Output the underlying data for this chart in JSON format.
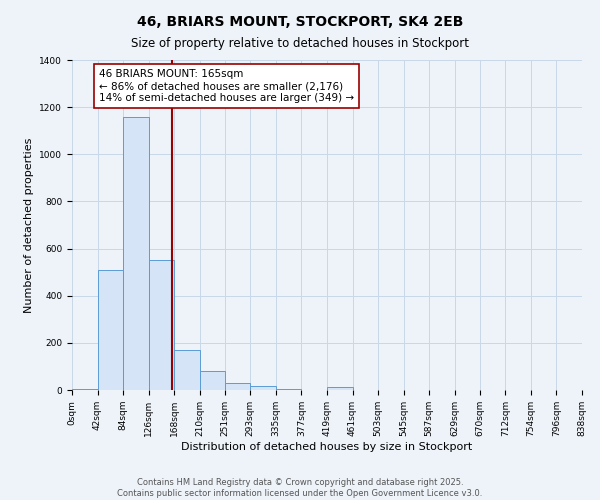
{
  "title": "46, BRIARS MOUNT, STOCKPORT, SK4 2EB",
  "subtitle": "Size of property relative to detached houses in Stockport",
  "xlabel": "Distribution of detached houses by size in Stockport",
  "ylabel": "Number of detached properties",
  "bin_edges": [
    0,
    42,
    84,
    126,
    168,
    210,
    251,
    293,
    335,
    377,
    419,
    461,
    503,
    545,
    587,
    629,
    670,
    712,
    754,
    796,
    838
  ],
  "bin_counts": [
    5,
    510,
    1160,
    550,
    170,
    80,
    30,
    15,
    5,
    2,
    12,
    0,
    0,
    0,
    0,
    0,
    0,
    0,
    0,
    0
  ],
  "bar_facecolor": "#d6e4f7",
  "bar_edgecolor": "#5b9bd5",
  "grid_color": "#c8d8e8",
  "bg_color": "#eef3fa",
  "property_line_x": 165,
  "property_line_color": "#990000",
  "annotation_title": "46 BRIARS MOUNT: 165sqm",
  "annotation_line1": "← 86% of detached houses are smaller (2,176)",
  "annotation_line2": "14% of semi-detached houses are larger (349) →",
  "annotation_box_color": "#ffffff",
  "annotation_border_color": "#990000",
  "ylim": [
    0,
    1400
  ],
  "yticks": [
    0,
    200,
    400,
    600,
    800,
    1000,
    1200,
    1400
  ],
  "xtick_labels": [
    "0sqm",
    "42sqm",
    "84sqm",
    "126sqm",
    "168sqm",
    "210sqm",
    "251sqm",
    "293sqm",
    "335sqm",
    "377sqm",
    "419sqm",
    "461sqm",
    "503sqm",
    "545sqm",
    "587sqm",
    "629sqm",
    "670sqm",
    "712sqm",
    "754sqm",
    "796sqm",
    "838sqm"
  ],
  "footnote1": "Contains HM Land Registry data © Crown copyright and database right 2025.",
  "footnote2": "Contains public sector information licensed under the Open Government Licence v3.0.",
  "title_fontsize": 10,
  "subtitle_fontsize": 8.5,
  "axis_label_fontsize": 8,
  "tick_fontsize": 6.5,
  "annotation_fontsize": 7.5,
  "footnote_fontsize": 6
}
